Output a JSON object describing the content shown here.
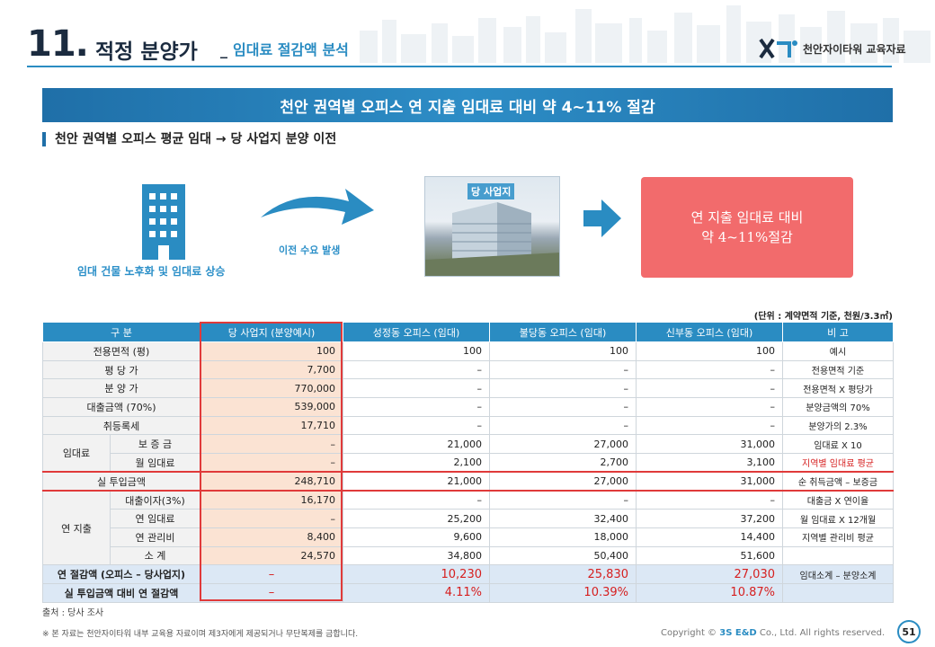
{
  "header": {
    "number": "11.",
    "title": "적정 분양가",
    "separator": "_",
    "subtitle": "임대료 절감액 분석",
    "brand": "천안자이타워 교육자료"
  },
  "banner": "천안 권역별 오피스 연 지출 임대료 대비 약 4~11% 절감",
  "section_title": "천안 권역별 오피스 평균 임대 → 당 사업지 분양 이전",
  "diagram": {
    "building_caption": "임대 건물 노후화 및 임대료 상승",
    "arrow_caption": "이전 수요 발생",
    "photo_label": "당 사업지",
    "result_line1": "연 지출 임대료 대비",
    "result_line2": "약 4~11%절감"
  },
  "unit_note": "(단위 : 계약면적 기준, 천원/3.3㎡)",
  "table": {
    "headers": [
      "구 분",
      "당 사업지 (분양예시)",
      "성정동 오피스 (임대)",
      "불당동 오피스 (임대)",
      "신부동 오피스 (임대)",
      "비 고"
    ],
    "rows": {
      "area": {
        "label": "전용면적 (평)",
        "values": [
          "100",
          "100",
          "100",
          "100"
        ],
        "note": "예시"
      },
      "price_py": {
        "label": "평 당 가",
        "values": [
          "7,700",
          "–",
          "–",
          "–"
        ],
        "note": "전용면적 기준"
      },
      "sale_price": {
        "label": "분 양 가",
        "values": [
          "770,000",
          "–",
          "–",
          "–"
        ],
        "note": "전용면적 X 평당가"
      },
      "loan": {
        "label": "대출금액 (70%)",
        "values": [
          "539,000",
          "–",
          "–",
          "–"
        ],
        "note": "분양금액의 70%"
      },
      "acq_tax": {
        "label": "취등록세",
        "values": [
          "17,710",
          "–",
          "–",
          "–"
        ],
        "note": "분양가의 2.3%"
      },
      "rent_group": "임대료",
      "deposit": {
        "label": "보 증 금",
        "values": [
          "–",
          "21,000",
          "27,000",
          "31,000"
        ],
        "note": "임대료 X 10"
      },
      "monthly_rent": {
        "label": "월 임대료",
        "values": [
          "–",
          "2,100",
          "2,700",
          "3,100"
        ],
        "note": "지역별 임대료 평균"
      },
      "actual_invest": {
        "label": "실 투입금액",
        "values": [
          "248,710",
          "21,000",
          "27,000",
          "31,000"
        ],
        "note": "순 취득금액 – 보증금"
      },
      "annual_group": "연 지출",
      "loan_interest": {
        "label": "대출이자(3%)",
        "values": [
          "16,170",
          "–",
          "–",
          "–"
        ],
        "note": "대출금 X 연이율"
      },
      "annual_rent": {
        "label": "연 임대료",
        "values": [
          "–",
          "25,200",
          "32,400",
          "37,200"
        ],
        "note": "월 임대료 X 12개월"
      },
      "annual_mgmt": {
        "label": "연 관리비",
        "values": [
          "8,400",
          "9,600",
          "18,000",
          "14,400"
        ],
        "note": "지역별 관리비 평균"
      },
      "subtotal": {
        "label": "소 계",
        "values": [
          "24,570",
          "34,800",
          "50,400",
          "51,600"
        ],
        "note": ""
      },
      "annual_saving": {
        "label": "연 절감액 (오피스 – 당사업지)",
        "values": [
          "–",
          "10,230",
          "25,830",
          "27,030"
        ],
        "note": "임대소계 – 분양소계"
      },
      "saving_rate": {
        "label": "실 투입금액 대비 연 절감액",
        "values": [
          "–",
          "4.11%",
          "10.39%",
          "10.87%"
        ],
        "note": ""
      }
    }
  },
  "source": "출처 : 당사 조사",
  "footer_note": "※ 본 자료는 천안자이타워 내부 교육용 자료이며 제3자에게 제공되거나 무단복제를 금합니다.",
  "copyright_prefix": "Copyright ©",
  "copyright_brand": "3S E&D",
  "copyright_suffix": "Co., Ltd. All rights reserved.",
  "page_number": "51",
  "colors": {
    "primary": "#2a8cc2",
    "highlight_red": "#e03a3a",
    "result_box": "#f26b6c",
    "site_column": "#fbe3d3"
  }
}
